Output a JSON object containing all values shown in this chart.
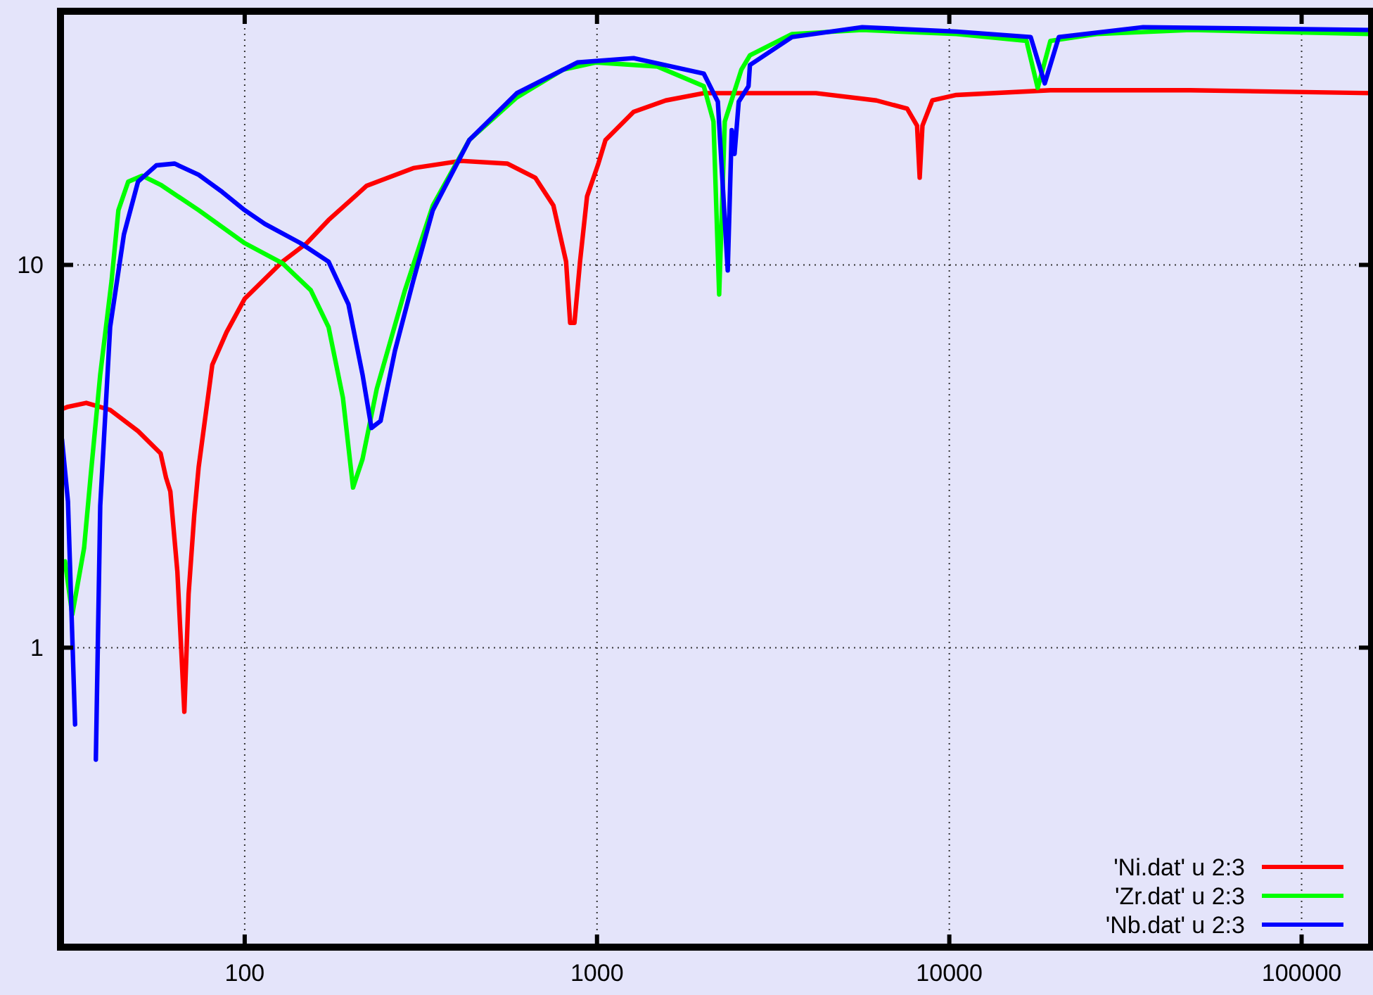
{
  "chart_data": {
    "type": "line",
    "log": "xy",
    "grid": true,
    "legend": "bottom right",
    "line_style": "solid",
    "xlim": [
      30,
      158000
    ],
    "ylim": [
      0.165,
      46
    ],
    "xticks": [
      100,
      1000,
      10000,
      100000
    ],
    "yticks": [
      1,
      10
    ],
    "series": [
      {
        "name": "'Ni.dat' u 2:3",
        "color": "#ff0000",
        "x": [
          30.3,
          31.5,
          35.5,
          41.5,
          49.8,
          57.7,
          59.8,
          61.5,
          64.4,
          67.4,
          69.3,
          71.9,
          74,
          80.9,
          88.8,
          100,
          128,
          150,
          173,
          222,
          301,
          411,
          556,
          668,
          752,
          817,
          839,
          863,
          895,
          937,
          1009,
          1057,
          1270,
          1567,
          2010,
          4183,
          6210,
          7590,
          8100,
          8240,
          8390,
          8950,
          10470,
          19360,
          48400,
          158000
        ],
        "values": [
          4.2,
          4.26,
          4.36,
          4.18,
          3.68,
          3.22,
          2.78,
          2.56,
          1.58,
          0.68,
          1.38,
          2.22,
          2.96,
          5.48,
          6.67,
          8.16,
          10.2,
          11.4,
          13.1,
          16.1,
          17.9,
          18.7,
          18.4,
          16.9,
          14.3,
          10.2,
          7.06,
          7.06,
          10.2,
          15.1,
          18.4,
          21.2,
          25.1,
          26.9,
          28.1,
          28.1,
          26.9,
          25.6,
          23.1,
          16.9,
          23.1,
          26.9,
          27.8,
          28.6,
          28.6,
          28.1
        ]
      },
      {
        "name": "'Zr.dat' u 2:3",
        "color": "#00ff00",
        "x": [
          30.9,
          32.4,
          35,
          36.5,
          38.9,
          41.9,
          43.8,
          46.7,
          51.2,
          57.7,
          74,
          100,
          128,
          154,
          173,
          190,
          203,
          216,
          237,
          285,
          342,
          434,
          592,
          802,
          991,
          1483,
          2010,
          2141,
          2222,
          2305,
          2570,
          2717,
          3578,
          5660,
          10470,
          16560,
          17820,
          19360,
          26200,
          48400,
          158000
        ],
        "values": [
          1.68,
          1.22,
          1.82,
          2.78,
          5.17,
          9.1,
          13.9,
          16.5,
          17.1,
          16.2,
          13.9,
          11.4,
          10.1,
          8.59,
          6.88,
          4.5,
          2.62,
          3.11,
          4.74,
          8.59,
          14.3,
          21.2,
          27.4,
          32.4,
          33.8,
          33,
          29.3,
          23.7,
          8.37,
          23.7,
          32.4,
          35.3,
          40.1,
          41.1,
          40.1,
          38.5,
          29,
          38.5,
          40.1,
          41.1,
          40.1
        ]
      },
      {
        "name": "'Nb.dat' u 2:3",
        "color": "#0000ff",
        "x": [
          30.3,
          31.5,
          33,
          34.8,
          37.2,
          37.8,
          38.9,
          41.5,
          45.4,
          49.8,
          56.1,
          63.2,
          74,
          86.4,
          100,
          114,
          144,
          173,
          197,
          216,
          229,
          243,
          267,
          301,
          342,
          434,
          592,
          879,
          1270,
          2010,
          2203,
          2350,
          2412,
          2457,
          2525,
          2692,
          2717,
          3578,
          5660,
          10470,
          17020,
          18660,
          20460,
          35500,
          158000
        ],
        "values": [
          3.5,
          2.41,
          0.63,
          null,
          null,
          0.51,
          2.35,
          6.88,
          12.0,
          16.5,
          18.2,
          18.4,
          17.2,
          15.5,
          13.9,
          12.8,
          11.4,
          10.2,
          7.89,
          5.17,
          3.75,
          3.91,
          5.97,
          9.1,
          13.9,
          21.2,
          28.1,
          33.8,
          34.7,
          31.6,
          26.7,
          9.67,
          22.5,
          19.5,
          26.7,
          29.3,
          33.3,
          39.4,
          41.8,
          40.7,
          39.4,
          29.8,
          39.4,
          41.8,
          41.1
        ]
      }
    ]
  }
}
